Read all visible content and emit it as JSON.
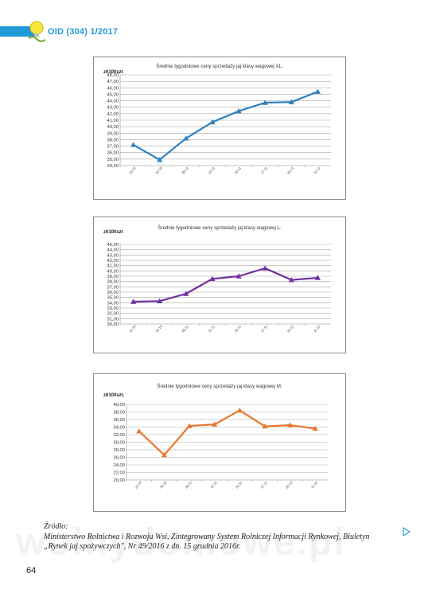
{
  "header": {
    "journal": "OID (304) 1/2017"
  },
  "source": {
    "label": "Źródło:",
    "line1": "Ministerstwo Rolnictwa i Rozwoju Wsi, Zintegrowany System Rolniczej Informacji Rynkowej, Biuletyn",
    "line2": "„Rynek jaj spożywczych\", Nr 49/2016 z dn. 15 grudnia 2016r."
  },
  "watermark": "wolnydomowe.pl",
  "page_number": "64",
  "chart_data": [
    {
      "type": "line",
      "title": "Średnie tygodniowe ceny sprzedaży jaj klasy wagowej XL.",
      "ylabel": "zł/100szt",
      "ylim": [
        34,
        48
      ],
      "ystep": 1,
      "color": "#2e7fbd",
      "marker": "triangle",
      "categories": [
        "23.10",
        "30.10",
        "06.11",
        "13.11",
        "20.11",
        "27.11",
        "04.12",
        "11.12"
      ],
      "values": [
        37.2,
        34.9,
        38.2,
        40.7,
        42.4,
        43.7,
        43.8,
        45.4
      ]
    },
    {
      "type": "line",
      "title": "Średnie tygodniowe ceny sprzedaży jaj klasy wagowej L.",
      "ylabel": "zł/100szt",
      "ylim": [
        30,
        45
      ],
      "ystep": 1,
      "color": "#7030a0",
      "marker": "triangle",
      "categories": [
        "23.10",
        "30.10",
        "06.11",
        "13.11",
        "20.11",
        "27.11",
        "04.12",
        "11.12"
      ],
      "values": [
        34.2,
        34.3,
        35.7,
        38.5,
        39.0,
        40.5,
        38.3,
        38.7
      ]
    },
    {
      "type": "line",
      "title": "Średnie tygodniowe ceny sprzedaży jaj klasy wagowej M.",
      "ylabel": "zł/100szt.",
      "ylim": [
        20,
        40
      ],
      "ystep": 2,
      "color": "#e8772e",
      "marker": "triangle",
      "categories": [
        "23.10",
        "30.10",
        "06.11",
        "13.11",
        "20.11",
        "27.11",
        "04.12",
        "11.12"
      ],
      "values": [
        32.9,
        26.6,
        34.3,
        34.7,
        38.4,
        34.2,
        34.5,
        33.6
      ]
    }
  ]
}
